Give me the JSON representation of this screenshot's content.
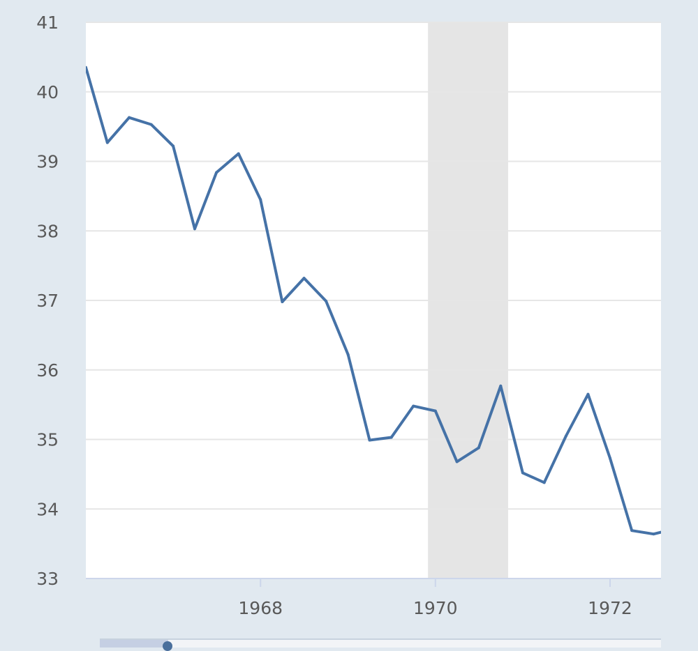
{
  "chart_data": {
    "type": "line",
    "title": "",
    "xlabel": "",
    "ylabel": "",
    "ylim": [
      33,
      41
    ],
    "xlim": [
      "1966-01-01",
      "1972-08-01"
    ],
    "y_ticks": [
      "33",
      "34",
      "35",
      "36",
      "37",
      "38",
      "39",
      "40",
      "41"
    ],
    "x_ticks": [
      {
        "label": "1968",
        "date": "1968-01-01"
      },
      {
        "label": "1970",
        "date": "1970-01-01"
      },
      {
        "label": "1972",
        "date": "1972-01-01"
      }
    ],
    "grid": "horizontal",
    "recession_shading": [
      {
        "start": "1969-12-01",
        "end": "1970-11-01"
      }
    ],
    "series": [
      {
        "color": "#4572a7",
        "x": [
          "1966-01-01",
          "1966-04-01",
          "1966-07-01",
          "1966-10-01",
          "1967-01-01",
          "1967-04-01",
          "1967-07-01",
          "1967-10-01",
          "1968-01-01",
          "1968-04-01",
          "1968-07-01",
          "1968-10-01",
          "1969-01-01",
          "1969-04-01",
          "1969-07-01",
          "1969-10-01",
          "1970-01-01",
          "1970-04-01",
          "1970-07-01",
          "1970-10-01",
          "1971-01-01",
          "1971-04-01",
          "1971-07-01",
          "1971-10-01",
          "1972-01-01",
          "1972-04-01",
          "1972-07-01",
          "1972-10-01"
        ],
        "values": [
          40.35,
          39.27,
          39.63,
          39.53,
          39.22,
          38.03,
          38.84,
          39.11,
          38.45,
          36.98,
          37.32,
          36.99,
          36.22,
          34.99,
          35.03,
          35.48,
          35.41,
          34.68,
          34.88,
          35.77,
          34.52,
          34.38,
          35.05,
          35.65,
          34.73,
          33.69,
          33.64,
          33.72
        ]
      }
    ],
    "colors": {
      "page_background": "#e1e9f0",
      "plot_background": "#ffffff",
      "grid": "#e6e6e6",
      "recession": "#e5e5e5",
      "axis": "#ccd6eb"
    }
  }
}
